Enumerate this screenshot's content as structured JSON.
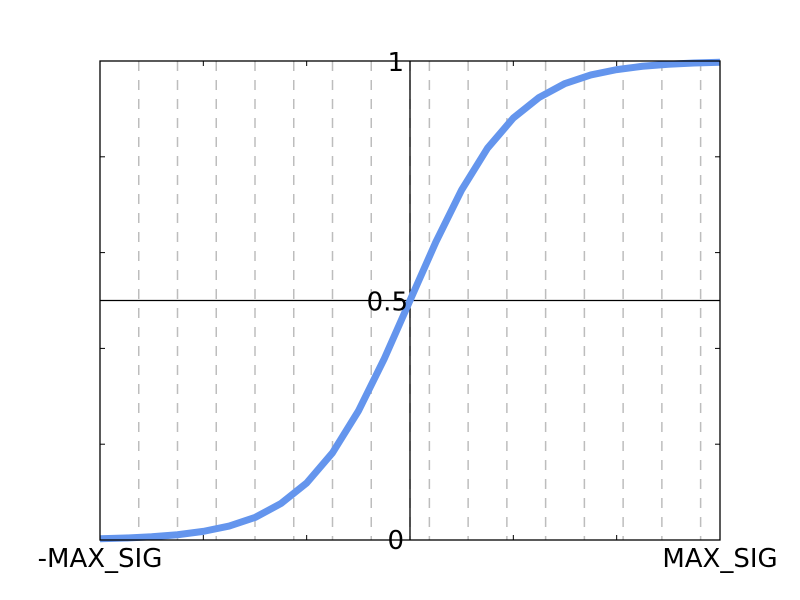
{
  "chart_data": {
    "type": "line",
    "title": "",
    "xlabel": "",
    "ylabel": "",
    "x_tick_labels": {
      "left": "-MAX_SIG",
      "right": "MAX_SIG"
    },
    "y_tick_labels": {
      "zero": "0",
      "half": "0.5",
      "one": "1"
    },
    "xlim": [
      -6,
      6
    ],
    "ylim": [
      0,
      1
    ],
    "grid": "vertical dashed",
    "x_grid_values": [
      -5.25,
      -4.5,
      -3.75,
      -3,
      -2.25,
      -1.5,
      -0.75,
      0,
      0.375,
      1.125,
      1.875,
      2.625,
      3.375,
      4.125,
      4.875,
      5.625
    ],
    "y_minor_ticks": [
      0.2,
      0.4,
      0.6,
      0.8
    ],
    "series": [
      {
        "function": "sigmoid",
        "color": "#6495ED",
        "x": [
          -6,
          -5.5,
          -5,
          -4.5,
          -4,
          -3.5,
          -3,
          -2.5,
          -2,
          -1.5,
          -1,
          -0.5,
          0,
          0.5,
          1,
          1.5,
          2,
          2.5,
          3,
          3.5,
          4,
          4.5,
          5,
          5.5,
          6
        ],
        "values": [
          0.0025,
          0.0041,
          0.0067,
          0.011,
          0.018,
          0.029,
          0.047,
          0.076,
          0.119,
          0.182,
          0.269,
          0.378,
          0.5,
          0.622,
          0.731,
          0.818,
          0.881,
          0.924,
          0.953,
          0.971,
          0.982,
          0.989,
          0.9933,
          0.9959,
          0.9975
        ]
      }
    ]
  }
}
